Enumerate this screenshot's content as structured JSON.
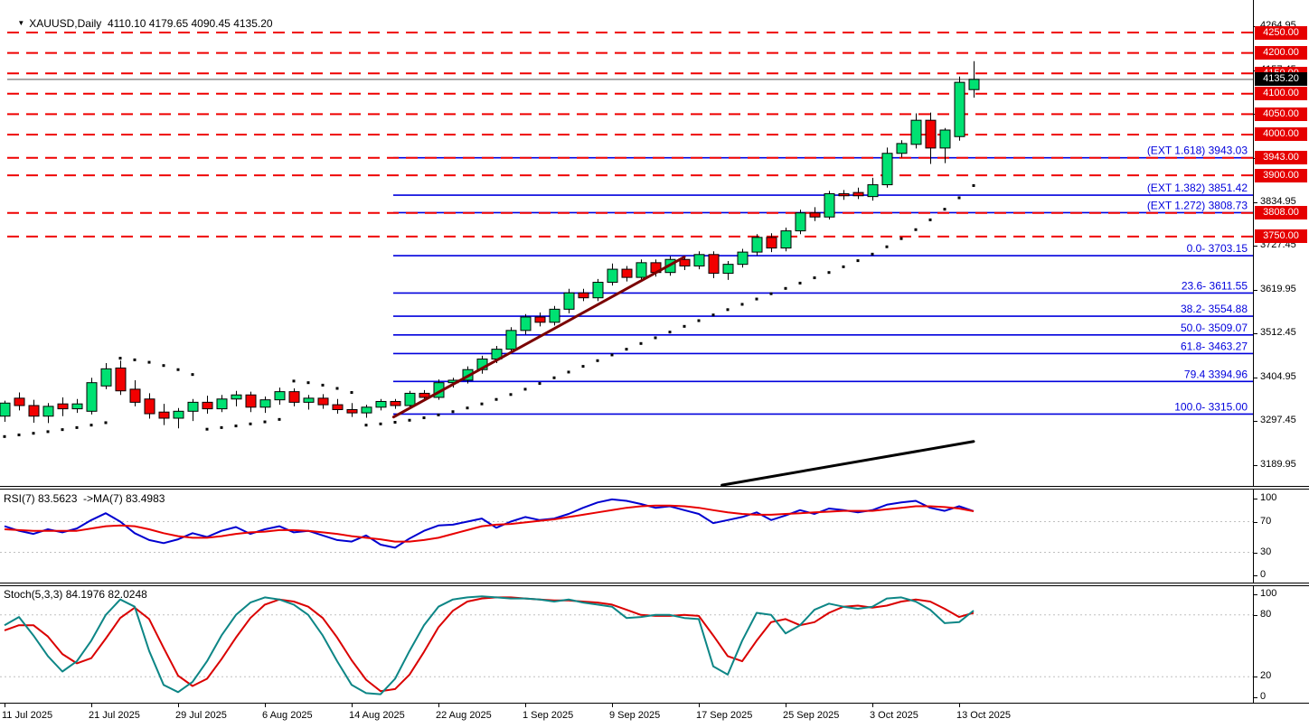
{
  "header": {
    "text": "XAUUSD,Daily  4110.10 4179.65 4090.45 4135.20",
    "symbol": "XAUUSD",
    "timeframe": "Daily",
    "dropdown_icon": "triangle-down"
  },
  "colors": {
    "bull": "#00e172",
    "bear": "#f20000",
    "candle_border": "#000000",
    "level_red": "#ef0000",
    "fib_blue": "#0000dd",
    "last_price_gray": "#8c8c8c",
    "sar_black": "#000000",
    "trend_maroon": "#7a0000",
    "trend_black": "#000000",
    "rsi_blue": "#0000d0",
    "rsi_ma_red": "#e80000",
    "stoch_teal": "#0d8686",
    "stoch_signal_red": "#da0000",
    "guide_gray": "#c0c0c0",
    "badge_red": "#e60000",
    "badge_black": "#000000"
  },
  "chart_data": {
    "type": "candlestick",
    "title": "XAUUSD Daily",
    "last_ohlc": {
      "open": 4110.1,
      "high": 4179.65,
      "low": 4090.45,
      "close": 4135.2
    },
    "last_price": 4135.2,
    "ylim": [
      3139,
      4281
    ],
    "bar_spacing_px": 16,
    "candles": [
      [
        3310,
        3348,
        3296,
        3342
      ],
      [
        3354,
        3368,
        3324,
        3336
      ],
      [
        3336,
        3350,
        3294,
        3310
      ],
      [
        3310,
        3342,
        3293,
        3334
      ],
      [
        3340,
        3356,
        3310,
        3328
      ],
      [
        3328,
        3352,
        3318,
        3340
      ],
      [
        3322,
        3404,
        3314,
        3392
      ],
      [
        3384,
        3440,
        3376,
        3426
      ],
      [
        3428,
        3446,
        3362,
        3372
      ],
      [
        3376,
        3398,
        3334,
        3344
      ],
      [
        3352,
        3366,
        3304,
        3316
      ],
      [
        3320,
        3340,
        3288,
        3305
      ],
      [
        3305,
        3330,
        3280,
        3322
      ],
      [
        3322,
        3352,
        3298,
        3344
      ],
      [
        3344,
        3360,
        3316,
        3328
      ],
      [
        3328,
        3362,
        3320,
        3352
      ],
      [
        3352,
        3372,
        3334,
        3362
      ],
      [
        3362,
        3370,
        3320,
        3332
      ],
      [
        3332,
        3358,
        3318,
        3350
      ],
      [
        3350,
        3380,
        3338,
        3370
      ],
      [
        3370,
        3378,
        3334,
        3344
      ],
      [
        3344,
        3362,
        3326,
        3354
      ],
      [
        3354,
        3364,
        3328,
        3338
      ],
      [
        3338,
        3352,
        3316,
        3326
      ],
      [
        3326,
        3342,
        3308,
        3318
      ],
      [
        3318,
        3338,
        3306,
        3332
      ],
      [
        3332,
        3352,
        3324,
        3346
      ],
      [
        3346,
        3352,
        3328,
        3336
      ],
      [
        3336,
        3372,
        3330,
        3366
      ],
      [
        3366,
        3374,
        3348,
        3356
      ],
      [
        3356,
        3400,
        3350,
        3392
      ],
      [
        3392,
        3404,
        3380,
        3398
      ],
      [
        3398,
        3432,
        3390,
        3424
      ],
      [
        3424,
        3458,
        3414,
        3450
      ],
      [
        3450,
        3482,
        3440,
        3474
      ],
      [
        3474,
        3528,
        3464,
        3520
      ],
      [
        3520,
        3560,
        3510,
        3553
      ],
      [
        3553,
        3564,
        3530,
        3540
      ],
      [
        3540,
        3580,
        3532,
        3572
      ],
      [
        3572,
        3622,
        3562,
        3612
      ],
      [
        3612,
        3622,
        3592,
        3600
      ],
      [
        3600,
        3646,
        3592,
        3638
      ],
      [
        3638,
        3684,
        3630,
        3670
      ],
      [
        3670,
        3678,
        3640,
        3650
      ],
      [
        3650,
        3694,
        3642,
        3686
      ],
      [
        3686,
        3694,
        3652,
        3662
      ],
      [
        3662,
        3702,
        3654,
        3694
      ],
      [
        3694,
        3700,
        3668,
        3678
      ],
      [
        3678,
        3714,
        3670,
        3706
      ],
      [
        3706,
        3714,
        3648,
        3660
      ],
      [
        3660,
        3690,
        3644,
        3682
      ],
      [
        3682,
        3720,
        3674,
        3712
      ],
      [
        3712,
        3756,
        3704,
        3748
      ],
      [
        3748,
        3758,
        3712,
        3722
      ],
      [
        3722,
        3772,
        3714,
        3764
      ],
      [
        3764,
        3816,
        3756,
        3808
      ],
      [
        3808,
        3822,
        3788,
        3798
      ],
      [
        3798,
        3862,
        3792,
        3855
      ],
      [
        3855,
        3864,
        3840,
        3850
      ],
      [
        3858,
        3870,
        3842,
        3850
      ],
      [
        3848,
        3894,
        3838,
        3877
      ],
      [
        3877,
        3968,
        3870,
        3954
      ],
      [
        3954,
        3986,
        3944,
        3978
      ],
      [
        3976,
        4052,
        3966,
        4035
      ],
      [
        4035,
        4054,
        3928,
        3967
      ],
      [
        3967,
        4016,
        3930,
        4011
      ],
      [
        3995,
        4142,
        3985,
        4128
      ],
      [
        4110.1,
        4179.65,
        4090.45,
        4135.2
      ]
    ],
    "sar_dots": [
      3260,
      3264,
      3268,
      3272,
      3277,
      3282,
      3288,
      3294,
      3452,
      3448,
      3442,
      3434,
      3424,
      3412,
      3278,
      3282,
      3286,
      3291,
      3296,
      3302,
      3396,
      3392,
      3386,
      3378,
      3368,
      3288,
      3291,
      3295,
      3300,
      3306,
      3313,
      3321,
      3330,
      3340,
      3351,
      3363,
      3376,
      3390,
      3404,
      3418,
      3432,
      3446,
      3460,
      3474,
      3488,
      3502,
      3516,
      3530,
      3544,
      3558,
      3571,
      3584,
      3597,
      3610,
      3623,
      3636,
      3649,
      3662,
      3676,
      3691,
      3707,
      3725,
      3745,
      3767,
      3791,
      3817,
      3845,
      3875
    ],
    "resistance_levels": [
      4250,
      4200,
      4150,
      4100,
      4050,
      4000,
      3943,
      3900,
      3808,
      3750
    ],
    "fibonacci": [
      {
        "text": "(EXT 1.618)  3943.03",
        "value": 3943.03
      },
      {
        "text": "(EXT 1.382)  3851.42",
        "value": 3851.42
      },
      {
        "text": "(EXT 1.272)  3808.73",
        "value": 3808.73
      },
      {
        "text": "0.0- 3703.15",
        "value": 3703.15
      },
      {
        "text": "23.6- 3611.55",
        "value": 3611.55
      },
      {
        "text": "38.2- 3554.88",
        "value": 3554.88
      },
      {
        "text": "50.0- 3509.07",
        "value": 3509.07
      },
      {
        "text": "61.8- 3463.27",
        "value": 3463.27
      },
      {
        "text": "79.4 3394.96",
        "value": 3394.96
      },
      {
        "text": "100.0- 3315.00",
        "value": 3315.0
      }
    ],
    "trendlines": [
      {
        "name": "uptrend-line",
        "i1": 26.9,
        "p1": 3308,
        "i2": 47.0,
        "p2": 3700,
        "color_key": "trend_maroon",
        "width": 3
      },
      {
        "name": "support-line",
        "i1": 49.6,
        "p1": 3141,
        "i2": 67.0,
        "p2": 3248,
        "color_key": "trend_black",
        "width": 3
      }
    ],
    "price_axis_ticks": [
      4264.95,
      4157.45,
      4049.95,
      3942.45,
      3834.95,
      3727.45,
      3619.95,
      3512.45,
      3404.95,
      3297.45,
      3189.95
    ],
    "x_ticks": [
      {
        "i": 0,
        "label": "11 Jul 2025"
      },
      {
        "i": 6,
        "label": "21 Jul 2025"
      },
      {
        "i": 12,
        "label": "29 Jul 2025"
      },
      {
        "i": 18,
        "label": "6 Aug 2025"
      },
      {
        "i": 24,
        "label": "14 Aug 2025"
      },
      {
        "i": 30,
        "label": "22 Aug 2025"
      },
      {
        "i": 36,
        "label": "1 Sep 2025"
      },
      {
        "i": 42,
        "label": "9 Sep 2025"
      },
      {
        "i": 48,
        "label": "17 Sep 2025"
      },
      {
        "i": 54,
        "label": "25 Sep 2025"
      },
      {
        "i": 60,
        "label": "3 Oct 2025"
      },
      {
        "i": 66,
        "label": "13 Oct 2025"
      }
    ],
    "rsi": {
      "label": "RSI(7) 83.5623  ->MA(7) 83.4983",
      "period": 7,
      "value": 83.5623,
      "ma_value": 83.4983,
      "scale_ticks": [
        100,
        70,
        30,
        0
      ],
      "guides": [
        70,
        30
      ],
      "ylim": [
        0,
        100
      ],
      "main": [
        64,
        58,
        54,
        60,
        56,
        61,
        72,
        81,
        70,
        55,
        46,
        42,
        47,
        55,
        50,
        58,
        63,
        54,
        60,
        64,
        56,
        58,
        52,
        46,
        44,
        52,
        40,
        36,
        48,
        58,
        65,
        66,
        70,
        74,
        62,
        70,
        76,
        72,
        74,
        80,
        88,
        95,
        99,
        97,
        93,
        88,
        90,
        85,
        80,
        68,
        72,
        76,
        82,
        72,
        78,
        85,
        80,
        87,
        85,
        82,
        85,
        92,
        95,
        97,
        88,
        84,
        90,
        83.6
      ],
      "signal": [
        60,
        59,
        58,
        58,
        58,
        58,
        61,
        64,
        65,
        64,
        60,
        55,
        51,
        49,
        49,
        51,
        54,
        56,
        57,
        59,
        59,
        58,
        56,
        54,
        51,
        49,
        47,
        44,
        44,
        46,
        49,
        54,
        59,
        64,
        66,
        67,
        69,
        71,
        73,
        76,
        79,
        82,
        85,
        88,
        90,
        91,
        91,
        90,
        88,
        85,
        82,
        80,
        79,
        79,
        80,
        81,
        82,
        83,
        84,
        84,
        84,
        86,
        88,
        90,
        90,
        89,
        87,
        83.5
      ]
    },
    "stoch": {
      "label": "Stoch(5,3,3) 84.1976 82.0248",
      "params": "5,3,3",
      "value": 84.1976,
      "signal_value": 82.0248,
      "scale_ticks": [
        100,
        80,
        20,
        0
      ],
      "guides": [
        80,
        20
      ],
      "ylim": [
        0,
        100
      ],
      "main": [
        70,
        78,
        60,
        40,
        25,
        35,
        55,
        80,
        95,
        88,
        45,
        12,
        5,
        15,
        35,
        60,
        80,
        92,
        97,
        95,
        90,
        80,
        60,
        35,
        12,
        4,
        3,
        18,
        45,
        70,
        88,
        95,
        97,
        98,
        97,
        96,
        96,
        95,
        93,
        95,
        92,
        90,
        88,
        77,
        78,
        80,
        80,
        77,
        76,
        30,
        22,
        55,
        82,
        80,
        62,
        70,
        85,
        91,
        88,
        86,
        88,
        96,
        97,
        93,
        85,
        72,
        73,
        84.2
      ],
      "signal": [
        65,
        70,
        70,
        59,
        42,
        33,
        38,
        57,
        77,
        87,
        76,
        48,
        21,
        11,
        18,
        37,
        58,
        77,
        90,
        95,
        93,
        88,
        77,
        58,
        36,
        17,
        6,
        8,
        22,
        44,
        68,
        84,
        93,
        96,
        97,
        97,
        96,
        95,
        94,
        94,
        93,
        92,
        90,
        85,
        80,
        79,
        79,
        80,
        79,
        60,
        40,
        35,
        55,
        73,
        76,
        70,
        73,
        82,
        88,
        89,
        87,
        89,
        93,
        95,
        93,
        86,
        78,
        82
      ]
    }
  }
}
